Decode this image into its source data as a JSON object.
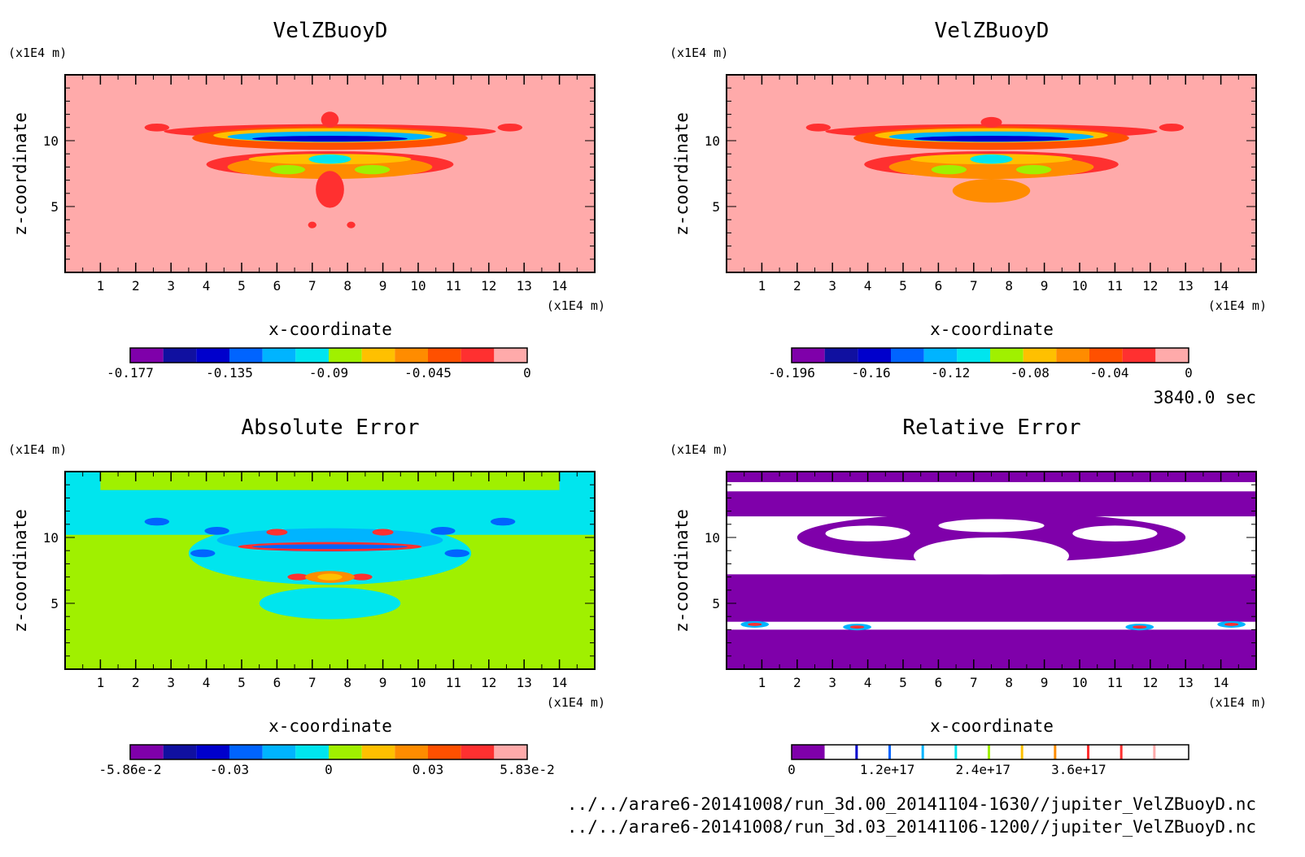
{
  "time_label": "3840.0 sec",
  "footer": {
    "file1": "../../arare6-20141008/run_3d.00_20141104-1630//jupiter_VelZBuoyD.nc",
    "file2": "../../arare6-20141008/run_3d.03_20141106-1200//jupiter_VelZBuoyD.nc"
  },
  "colors": {
    "pink": "#ffaaaa",
    "red": "#ff3030",
    "orange_red": "#ff5000",
    "orange": "#ff8c00",
    "yellow_orange": "#ffc000",
    "yellow_green": "#a0f000",
    "cyan": "#00e5ee",
    "light_blue": "#00b4ff",
    "blue": "#0064ff",
    "dark_blue": "#0000cc",
    "navy": "#1010a0",
    "purple": "#7f00aa",
    "white": "#ffffff"
  },
  "chart_data": [
    {
      "type": "heatmap",
      "title": "VelZBuoyD",
      "xlabel": "x-coordinate",
      "ylabel": "z-coordinate",
      "x_unit": "(x1E4 m)",
      "y_unit": "(x1E4 m)",
      "xlim": [
        0,
        15
      ],
      "ylim": [
        0,
        15
      ],
      "x_ticks": [
        "1",
        "2",
        "3",
        "4",
        "5",
        "6",
        "7",
        "8",
        "9",
        "10",
        "11",
        "12",
        "13",
        "14"
      ],
      "y_ticks": [
        "5",
        "10"
      ],
      "background_level": "0",
      "colorbar": {
        "colors": [
          "#7f00aa",
          "#1010a0",
          "#0000cc",
          "#0064ff",
          "#00b4ff",
          "#00e5ee",
          "#a0f000",
          "#ffc000",
          "#ff8c00",
          "#ff5000",
          "#ff3030",
          "#ffaaaa"
        ],
        "labels": [
          "-0.177",
          "-0.135",
          "-0.09",
          "-0.045",
          "0"
        ]
      }
    },
    {
      "type": "heatmap",
      "title": "VelZBuoyD",
      "xlabel": "x-coordinate",
      "ylabel": "z-coordinate",
      "x_unit": "(x1E4 m)",
      "y_unit": "(x1E4 m)",
      "xlim": [
        0,
        15
      ],
      "ylim": [
        0,
        15
      ],
      "x_ticks": [
        "1",
        "2",
        "3",
        "4",
        "5",
        "6",
        "7",
        "8",
        "9",
        "10",
        "11",
        "12",
        "13",
        "14"
      ],
      "y_ticks": [
        "5",
        "10"
      ],
      "background_level": "0",
      "colorbar": {
        "colors": [
          "#7f00aa",
          "#1010a0",
          "#0000cc",
          "#0064ff",
          "#00b4ff",
          "#00e5ee",
          "#a0f000",
          "#ffc000",
          "#ff8c00",
          "#ff5000",
          "#ff3030",
          "#ffaaaa"
        ],
        "labels": [
          "-0.196",
          "-0.16",
          "-0.12",
          "-0.08",
          "-0.04",
          "0"
        ]
      }
    },
    {
      "type": "heatmap",
      "title": "Absolute Error",
      "xlabel": "x-coordinate",
      "ylabel": "z-coordinate",
      "x_unit": "(x1E4 m)",
      "y_unit": "(x1E4 m)",
      "xlim": [
        0,
        15
      ],
      "ylim": [
        0,
        15
      ],
      "x_ticks": [
        "1",
        "2",
        "3",
        "4",
        "5",
        "6",
        "7",
        "8",
        "9",
        "10",
        "11",
        "12",
        "13",
        "14"
      ],
      "y_ticks": [
        "5",
        "10"
      ],
      "background_level": "0",
      "colorbar": {
        "colors": [
          "#7f00aa",
          "#1010a0",
          "#0000cc",
          "#0064ff",
          "#00b4ff",
          "#00e5ee",
          "#a0f000",
          "#ffc000",
          "#ff8c00",
          "#ff5000",
          "#ff3030",
          "#ffaaaa"
        ],
        "labels": [
          "-5.86e-2",
          "-0.03",
          "0",
          "0.03",
          "5.83e-2"
        ]
      }
    },
    {
      "type": "heatmap",
      "title": "Relative Error",
      "xlabel": "x-coordinate",
      "ylabel": "z-coordinate",
      "x_unit": "(x1E4 m)",
      "y_unit": "(x1E4 m)",
      "xlim": [
        0,
        15
      ],
      "ylim": [
        0,
        15
      ],
      "x_ticks": [
        "1",
        "2",
        "3",
        "4",
        "5",
        "6",
        "7",
        "8",
        "9",
        "10",
        "11",
        "12",
        "13",
        "14"
      ],
      "y_ticks": [
        "5",
        "10"
      ],
      "background_level": "0",
      "colorbar": {
        "colors": [
          "#7f00aa",
          "#ffffff",
          "#ffffff",
          "#ffffff",
          "#ffffff",
          "#ffffff",
          "#ffffff",
          "#ffffff",
          "#ffffff",
          "#ffffff",
          "#ffffff",
          "#ffffff"
        ],
        "labels": [
          "0",
          "1.2e+17",
          "2.4e+17",
          "3.6e+17"
        ]
      }
    }
  ]
}
